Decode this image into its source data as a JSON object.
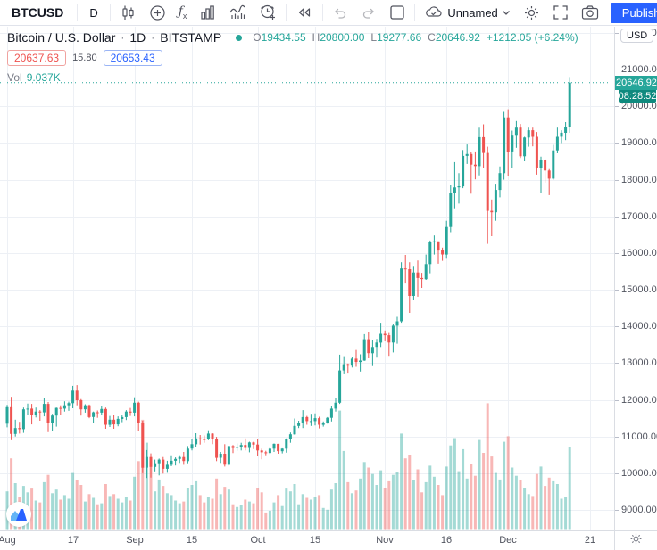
{
  "header": {
    "symbol": "BTCUSD",
    "interval": "D",
    "layout_name": "Unnamed",
    "publish_label": "Publish"
  },
  "legend": {
    "title": "Bitcoin / U.S. Dollar",
    "separator": "·",
    "interval_label": "1D",
    "exchange": "BITSTAMP",
    "ohlc": {
      "o_label": "O",
      "o": "19434.55",
      "h_label": "H",
      "h": "20800.00",
      "l_label": "L",
      "l": "19277.66",
      "c_label": "C",
      "c": "20646.92",
      "change": "+1212.05 (+6.24%)"
    },
    "bid": "20637.63",
    "spread": "15.80",
    "ask": "20653.43",
    "vol_label": "Vol",
    "vol_value": "9.037K"
  },
  "axis": {
    "currency_button": "USD",
    "last_price_badge": "20646.92",
    "countdown_badge": "08:28:52"
  },
  "icons": {
    "gear-icon": "⚙",
    "chevron-down-icon": "⌄",
    "undo-icon": "curved-arrow-left",
    "redo-icon": "curved-arrow-right"
  },
  "colors": {
    "up": "#26a69a",
    "down": "#ef5350",
    "vol_up": "rgba(38,166,154,0.42)",
    "vol_down": "rgba(239,83,80,0.42)",
    "accent_blue": "#2962ff",
    "price_badge": "#26a69a",
    "countdown_badge": "#0f8a7e",
    "grid": "#edf0f5",
    "dotted_price_line": "#26a69a"
  },
  "chart_data": {
    "type": "candlestick",
    "title": "Bitcoin / U.S. Dollar",
    "exchange": "BITSTAMP",
    "interval": "1D",
    "x_start_label": "Aug",
    "x_labels": [
      {
        "i": 0,
        "label": "Aug"
      },
      {
        "i": 16,
        "label": "17"
      },
      {
        "i": 31,
        "label": "Sep"
      },
      {
        "i": 45,
        "label": "15"
      },
      {
        "i": 61,
        "label": "Oct"
      },
      {
        "i": 75,
        "label": "15"
      },
      {
        "i": 92,
        "label": "Nov"
      },
      {
        "i": 107,
        "label": "16"
      },
      {
        "i": 122,
        "label": "Dec"
      },
      {
        "i": 142,
        "label": "21"
      }
    ],
    "ylim": [
      9000,
      22000
    ],
    "y_tick_step": 1000,
    "last_close": 20646.92,
    "volume_unit": "K",
    "candles_format": [
      "open",
      "high",
      "low",
      "close",
      "volume"
    ],
    "candles": [
      [
        11350,
        11860,
        11250,
        11800,
        4.2
      ],
      [
        11800,
        12080,
        10900,
        11070,
        7.8
      ],
      [
        11070,
        11460,
        11000,
        11230,
        5.1
      ],
      [
        11230,
        11400,
        11080,
        11200,
        3.6
      ],
      [
        11200,
        11790,
        11100,
        11740,
        4.8
      ],
      [
        11740,
        11900,
        11580,
        11760,
        4.1
      ],
      [
        11760,
        11890,
        11330,
        11600,
        4.5
      ],
      [
        11600,
        11790,
        11520,
        11680,
        3.2
      ],
      [
        11680,
        11720,
        11430,
        11660,
        3.0
      ],
      [
        11660,
        12050,
        11550,
        11890,
        5.2
      ],
      [
        11890,
        11940,
        11120,
        11380,
        6.0
      ],
      [
        11380,
        11620,
        11160,
        11570,
        4.0
      ],
      [
        11570,
        11790,
        11270,
        11780,
        4.4
      ],
      [
        11780,
        11850,
        11600,
        11760,
        3.3
      ],
      [
        11760,
        11960,
        11680,
        11850,
        3.8
      ],
      [
        11850,
        11950,
        11700,
        11910,
        3.4
      ],
      [
        11910,
        12380,
        11770,
        12250,
        6.2
      ],
      [
        12250,
        12400,
        11850,
        11990,
        5.4
      ],
      [
        11990,
        12020,
        11570,
        11740,
        4.9
      ],
      [
        11740,
        11880,
        11650,
        11850,
        3.1
      ],
      [
        11850,
        11870,
        11500,
        11530,
        3.9
      ],
      [
        11530,
        11680,
        11380,
        11660,
        3.5
      ],
      [
        11660,
        11710,
        11510,
        11650,
        2.8
      ],
      [
        11650,
        11830,
        11600,
        11750,
        2.9
      ],
      [
        11750,
        11790,
        11210,
        11320,
        5.0
      ],
      [
        11320,
        11560,
        11260,
        11460,
        3.7
      ],
      [
        11460,
        11580,
        11210,
        11330,
        3.9
      ],
      [
        11330,
        11550,
        11280,
        11480,
        3.4
      ],
      [
        11480,
        11590,
        11390,
        11530,
        3.0
      ],
      [
        11530,
        11720,
        11450,
        11680,
        3.6
      ],
      [
        11680,
        11780,
        11560,
        11650,
        3.2
      ],
      [
        11650,
        12070,
        11550,
        11920,
        5.8
      ],
      [
        11920,
        11950,
        11150,
        11380,
        7.5
      ],
      [
        11380,
        11430,
        10000,
        10150,
        12.0
      ],
      [
        10150,
        10630,
        9870,
        10440,
        9.5
      ],
      [
        10440,
        10540,
        9880,
        10170,
        7.0
      ],
      [
        10170,
        10370,
        10050,
        10270,
        4.2
      ],
      [
        10270,
        10400,
        9940,
        10370,
        5.5
      ],
      [
        10370,
        10440,
        9990,
        10120,
        4.8
      ],
      [
        10120,
        10340,
        10010,
        10230,
        4.0
      ],
      [
        10230,
        10490,
        10190,
        10340,
        3.8
      ],
      [
        10340,
        10430,
        10210,
        10390,
        3.2
      ],
      [
        10390,
        10490,
        10280,
        10440,
        2.9
      ],
      [
        10440,
        10580,
        10230,
        10330,
        3.1
      ],
      [
        10330,
        10740,
        10270,
        10670,
        4.6
      ],
      [
        10670,
        10940,
        10620,
        10790,
        4.9
      ],
      [
        10790,
        11090,
        10710,
        10950,
        5.3
      ],
      [
        10950,
        11040,
        10780,
        10930,
        3.8
      ],
      [
        10930,
        11030,
        10830,
        10920,
        3.0
      ],
      [
        10920,
        11170,
        10900,
        11080,
        3.6
      ],
      [
        11080,
        11090,
        10790,
        10920,
        3.4
      ],
      [
        10920,
        10990,
        10330,
        10420,
        5.6
      ],
      [
        10420,
        10580,
        10280,
        10530,
        3.9
      ],
      [
        10530,
        10790,
        10180,
        10230,
        4.7
      ],
      [
        10230,
        10750,
        10200,
        10740,
        4.4
      ],
      [
        10740,
        10770,
        10550,
        10690,
        2.8
      ],
      [
        10690,
        10810,
        10610,
        10720,
        2.5
      ],
      [
        10720,
        10830,
        10620,
        10770,
        2.7
      ],
      [
        10770,
        10950,
        10620,
        10690,
        3.3
      ],
      [
        10690,
        10860,
        10570,
        10840,
        3.1
      ],
      [
        10840,
        10860,
        10660,
        10780,
        2.9
      ],
      [
        10780,
        10920,
        10470,
        10620,
        4.6
      ],
      [
        10620,
        10670,
        10380,
        10570,
        4.1
      ],
      [
        10570,
        10610,
        10490,
        10550,
        1.9
      ],
      [
        10550,
        10700,
        10520,
        10670,
        2.1
      ],
      [
        10670,
        10810,
        10580,
        10800,
        3.0
      ],
      [
        10800,
        10800,
        10530,
        10600,
        3.8
      ],
      [
        10600,
        10680,
        10540,
        10670,
        2.6
      ],
      [
        10670,
        10950,
        10560,
        10930,
        4.5
      ],
      [
        10930,
        11110,
        10830,
        11060,
        4.2
      ],
      [
        11060,
        11490,
        11050,
        11290,
        5.0
      ],
      [
        11290,
        11430,
        11230,
        11380,
        2.8
      ],
      [
        11380,
        11720,
        11230,
        11530,
        3.9
      ],
      [
        11530,
        11560,
        11320,
        11420,
        3.5
      ],
      [
        11420,
        11620,
        11290,
        11420,
        3.3
      ],
      [
        11420,
        11630,
        11300,
        11500,
        3.6
      ],
      [
        11500,
        11540,
        11220,
        11320,
        3.8
      ],
      [
        11320,
        11410,
        11270,
        11370,
        2.4
      ],
      [
        11370,
        11530,
        11350,
        11510,
        2.2
      ],
      [
        11510,
        11820,
        11410,
        11760,
        4.4
      ],
      [
        11760,
        12040,
        11680,
        11920,
        5.1
      ],
      [
        11920,
        13230,
        11890,
        12800,
        13.0
      ],
      [
        12800,
        13190,
        12720,
        12970,
        8.6
      ],
      [
        12970,
        12990,
        12740,
        12930,
        5.2
      ],
      [
        12930,
        13170,
        12880,
        13120,
        4.0
      ],
      [
        13120,
        13360,
        12900,
        13030,
        4.3
      ],
      [
        13030,
        13240,
        12770,
        13070,
        5.6
      ],
      [
        13070,
        13790,
        13060,
        13650,
        7.4
      ],
      [
        13650,
        13850,
        13130,
        13270,
        6.8
      ],
      [
        13270,
        13640,
        12920,
        13440,
        6.1
      ],
      [
        13440,
        13660,
        13150,
        13560,
        4.9
      ],
      [
        13560,
        14100,
        13440,
        13800,
        6.5
      ],
      [
        13800,
        13890,
        13620,
        13760,
        4.6
      ],
      [
        13760,
        13820,
        13200,
        13560,
        5.3
      ],
      [
        13560,
        14060,
        13290,
        14020,
        6.0
      ],
      [
        14020,
        14260,
        13530,
        14140,
        6.3
      ],
      [
        14140,
        15750,
        14100,
        15580,
        10.5
      ],
      [
        15580,
        15950,
        15170,
        15560,
        7.8
      ],
      [
        15560,
        15750,
        14370,
        14830,
        8.2
      ],
      [
        14830,
        15650,
        14710,
        15470,
        5.4
      ],
      [
        15470,
        15800,
        14810,
        15320,
        6.6
      ],
      [
        15320,
        15460,
        15050,
        15290,
        4.1
      ],
      [
        15290,
        15960,
        15270,
        15700,
        5.2
      ],
      [
        15700,
        16340,
        15450,
        16290,
        7.0
      ],
      [
        16290,
        16480,
        15960,
        16320,
        5.8
      ],
      [
        16320,
        16320,
        15710,
        16070,
        4.9
      ],
      [
        16070,
        16150,
        15790,
        15960,
        3.8
      ],
      [
        15960,
        16880,
        15870,
        16710,
        6.9
      ],
      [
        16710,
        17860,
        16570,
        17650,
        9.2
      ],
      [
        17650,
        18480,
        17220,
        17790,
        10.0
      ],
      [
        17790,
        18180,
        17350,
        17820,
        6.4
      ],
      [
        17820,
        18810,
        17770,
        18650,
        8.8
      ],
      [
        18650,
        18960,
        18430,
        18700,
        5.6
      ],
      [
        18700,
        18750,
        17620,
        18410,
        7.2
      ],
      [
        18410,
        18770,
        18010,
        18370,
        5.9
      ],
      [
        18370,
        19420,
        18120,
        19160,
        9.8
      ],
      [
        19160,
        19510,
        18330,
        18730,
        8.4
      ],
      [
        18730,
        18900,
        16250,
        17150,
        13.8
      ],
      [
        17150,
        17460,
        16460,
        17110,
        8.0
      ],
      [
        17110,
        17890,
        16880,
        17720,
        6.2
      ],
      [
        17720,
        18360,
        17520,
        18180,
        5.5
      ],
      [
        18180,
        19850,
        18000,
        19700,
        9.6
      ],
      [
        19700,
        19920,
        18100,
        18770,
        10.2
      ],
      [
        18770,
        19340,
        18330,
        19200,
        6.8
      ],
      [
        19200,
        19600,
        18870,
        19420,
        5.9
      ],
      [
        19420,
        19520,
        18590,
        18640,
        5.4
      ],
      [
        18640,
        19170,
        18500,
        19150,
        4.6
      ],
      [
        19150,
        19420,
        18900,
        19350,
        3.9
      ],
      [
        19350,
        19420,
        18910,
        19170,
        3.7
      ],
      [
        19170,
        19300,
        18140,
        18320,
        6.1
      ],
      [
        18320,
        18630,
        17650,
        18550,
        6.9
      ],
      [
        18550,
        18560,
        17920,
        18250,
        4.8
      ],
      [
        18250,
        18290,
        17580,
        18030,
        5.7
      ],
      [
        18030,
        18950,
        18000,
        18800,
        5.3
      ],
      [
        18800,
        19420,
        18720,
        19170,
        5.0
      ],
      [
        19170,
        19350,
        19000,
        19280,
        3.4
      ],
      [
        19280,
        19570,
        19080,
        19430,
        3.6
      ],
      [
        19434.55,
        20800,
        19277.66,
        20646.92,
        9.037
      ]
    ]
  }
}
